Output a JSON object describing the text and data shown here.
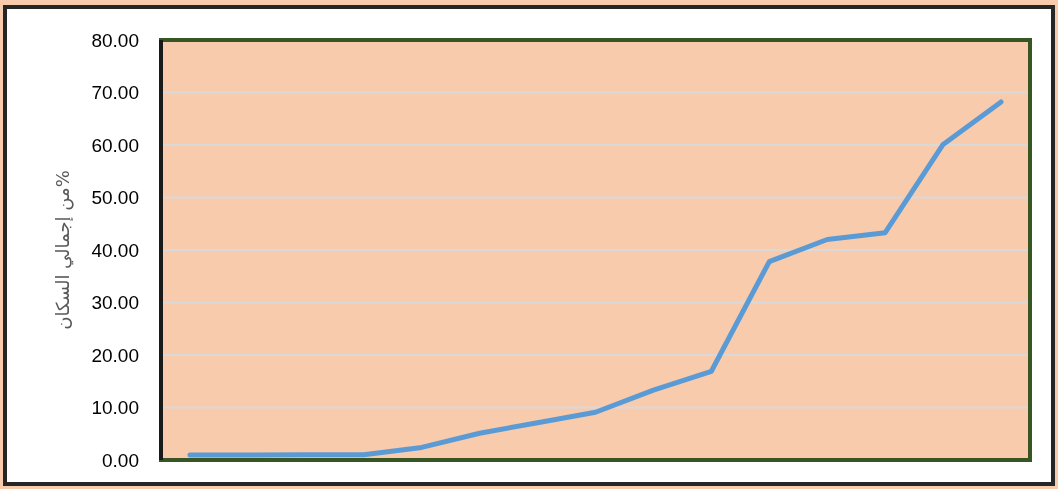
{
  "chart_data": {
    "type": "line",
    "ylabel": "من إجمالي السكان%",
    "categories": [
      null,
      null,
      null,
      null,
      null,
      null,
      null,
      null,
      null,
      null,
      null,
      null,
      null,
      null,
      null
    ],
    "series": [
      {
        "color": "#5b9bd5",
        "values": [
          0.95,
          0.95,
          1.0,
          1.0,
          2.4,
          5.1,
          7.1,
          9.1,
          13.3,
          16.9,
          37.8,
          42.0,
          43.3,
          60.1,
          68.2
        ]
      }
    ],
    "ylim": [
      0,
      80
    ],
    "yticks": [
      {
        "value": 0,
        "label": "0.00"
      },
      {
        "value": 10,
        "label": "10.00"
      },
      {
        "value": 20,
        "label": "20.00"
      },
      {
        "value": 30,
        "label": "30.00"
      },
      {
        "value": 40,
        "label": "40.00"
      },
      {
        "value": 50,
        "label": "50.00"
      },
      {
        "value": 60,
        "label": "60.00"
      },
      {
        "value": 70,
        "label": "70.00"
      },
      {
        "value": 80,
        "label": "80.00"
      }
    ],
    "grid": "y",
    "tick_labels": "y",
    "marker": "none",
    "line_style": "solid"
  }
}
